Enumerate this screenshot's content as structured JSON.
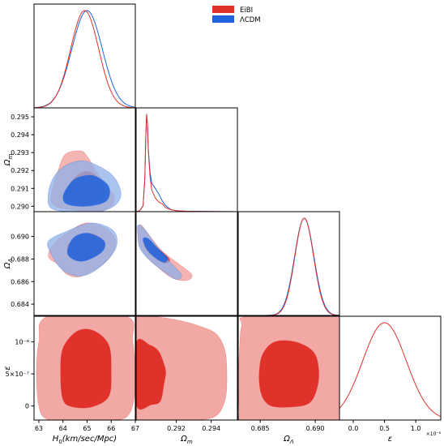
{
  "chart_data": {
    "type": "corner",
    "parameters": [
      {
        "key": "H0",
        "label_main": "H",
        "label_sub": "0",
        "label_rest": "(km/sec/Mpc)"
      },
      {
        "key": "Om",
        "label_main": "Ω",
        "label_sub": "m",
        "label_rest": ""
      },
      {
        "key": "OL",
        "label_main": "Ω",
        "label_sub": "Λ",
        "label_rest": ""
      },
      {
        "key": "eps",
        "label_main": "ε",
        "label_sub": "",
        "label_rest": ""
      }
    ],
    "ranges": {
      "H0": [
        62.8,
        67.0
      ],
      "Om": [
        0.2897,
        0.2955
      ],
      "OL": [
        0.683,
        0.6922
      ],
      "eps": [
        -2.2e-07,
        1.4e-06
      ]
    },
    "ticks": {
      "H0": {
        "values": [
          63,
          64,
          65,
          66,
          67
        ],
        "labels": [
          "63",
          "64",
          "65",
          "66",
          "67"
        ]
      },
      "Om_x": {
        "values": [
          0.292,
          0.294
        ],
        "labels": [
          "0.292",
          "0.294"
        ]
      },
      "Om_y": {
        "values": [
          0.29,
          0.291,
          0.292,
          0.293,
          0.294,
          0.295
        ],
        "labels": [
          "0.290",
          "0.291",
          "0.292",
          "0.293",
          "0.294",
          "0.295"
        ]
      },
      "OL_x": {
        "values": [
          0.685,
          0.69
        ],
        "labels": [
          "0.685",
          "0.690"
        ]
      },
      "OL_y": {
        "values": [
          0.684,
          0.686,
          0.688,
          0.69
        ],
        "labels": [
          "0.684",
          "0.686",
          "0.688",
          "0.690"
        ]
      },
      "eps_x": {
        "values": [
          0,
          5e-07,
          1e-06
        ],
        "labels": [
          "0.0",
          "0.5",
          "1.0"
        ]
      },
      "eps_y": {
        "values": [
          0,
          5e-07,
          1e-06
        ],
        "labels": [
          "0",
          "5×10⁻⁷",
          "10⁻⁶"
        ]
      }
    },
    "eps_x_multiplier": "×10⁻⁶",
    "series": [
      {
        "name": "EiBI",
        "color": "#e0322a",
        "light_color": "#f2a8a4"
      },
      {
        "name": "ΛCDM",
        "color": "#1f63dc",
        "light_color": "#8fb0ea"
      }
    ],
    "marginals": {
      "H0": {
        "EiBI": {
          "mean": 64.9,
          "sigma": 0.58
        },
        "ΛCDM": {
          "mean": 65.0,
          "sigma": 0.63
        }
      },
      "Om": {
        "EiBI": [
          [
            0.2897,
            0
          ],
          [
            0.2899,
            0.01
          ],
          [
            0.2901,
            0.06
          ],
          [
            0.2902,
            0.35
          ],
          [
            0.29025,
            0.75
          ],
          [
            0.2903,
            1.0
          ],
          [
            0.29035,
            0.9
          ],
          [
            0.2904,
            0.62
          ],
          [
            0.2905,
            0.35
          ],
          [
            0.2906,
            0.22
          ],
          [
            0.2908,
            0.14
          ],
          [
            0.291,
            0.1
          ],
          [
            0.2912,
            0.08
          ],
          [
            0.2914,
            0.04
          ],
          [
            0.2917,
            0.02
          ],
          [
            0.292,
            0.01
          ],
          [
            0.2925,
            0.005
          ],
          [
            0.2935,
            0.002
          ],
          [
            0.2955,
            0
          ]
        ],
        "ΛCDM": [
          [
            0.2897,
            0
          ],
          [
            0.2899,
            0.01
          ],
          [
            0.2901,
            0.06
          ],
          [
            0.2902,
            0.35
          ],
          [
            0.29025,
            0.75
          ],
          [
            0.2903,
            1.0
          ],
          [
            0.29035,
            0.9
          ],
          [
            0.2904,
            0.64
          ],
          [
            0.2905,
            0.4
          ],
          [
            0.2906,
            0.29
          ],
          [
            0.2908,
            0.24
          ],
          [
            0.291,
            0.18
          ],
          [
            0.2912,
            0.11
          ],
          [
            0.2914,
            0.06
          ],
          [
            0.2917,
            0.02
          ],
          [
            0.292,
            0.01
          ],
          [
            0.2925,
            0.005
          ],
          [
            0.2935,
            0.002
          ],
          [
            0.2955,
            0
          ]
        ]
      },
      "OL": {
        "EiBI": {
          "mean": 0.689,
          "sigma": 0.00085
        },
        "ΛCDM": {
          "mean": 0.689,
          "sigma": 0.00088
        }
      },
      "eps": {
        "EiBI": {
          "mean": 5e-07,
          "sigma": 3.5e-07
        }
      }
    },
    "contours": {
      "Om_H0": {
        "EiBI": {
          "outer": [
            [
              63.7,
              0.29
            ],
            [
              64.4,
              0.2898
            ],
            [
              65.4,
              0.2897
            ],
            [
              66.0,
              0.29
            ],
            [
              66.1,
              0.2906
            ],
            [
              65.6,
              0.2915
            ],
            [
              65.0,
              0.2928
            ],
            [
              64.7,
              0.2931
            ],
            [
              64.1,
              0.2929
            ],
            [
              63.8,
              0.292
            ],
            [
              63.5,
              0.2905
            ]
          ],
          "inner": [
            [
              64.3,
              0.2902
            ],
            [
              65.0,
              0.2901
            ],
            [
              65.6,
              0.2904
            ],
            [
              65.7,
              0.291
            ],
            [
              65.3,
              0.2918
            ],
            [
              64.8,
              0.2919
            ],
            [
              64.3,
              0.2913
            ],
            [
              64.1,
              0.2906
            ]
          ]
        },
        "ΛCDM": {
          "outer": [
            [
              63.5,
              0.2899
            ],
            [
              64.4,
              0.2897
            ],
            [
              65.5,
              0.2897
            ],
            [
              66.2,
              0.2901
            ],
            [
              66.4,
              0.2908
            ],
            [
              66.0,
              0.2918
            ],
            [
              65.0,
              0.2925
            ],
            [
              64.3,
              0.2924
            ],
            [
              63.7,
              0.2918
            ],
            [
              63.4,
              0.2908
            ]
          ],
          "inner": [
            [
              64.2,
              0.2901
            ],
            [
              65.0,
              0.29
            ],
            [
              65.8,
              0.2903
            ],
            [
              65.9,
              0.2911
            ],
            [
              65.3,
              0.2917
            ],
            [
              64.6,
              0.2916
            ],
            [
              64.2,
              0.2911
            ],
            [
              64.0,
              0.2905
            ]
          ]
        }
      },
      "OL_H0": {
        "EiBI": {
          "outer": [
            [
              63.8,
              0.6875
            ],
            [
              64.2,
              0.6866
            ],
            [
              64.8,
              0.6865
            ],
            [
              65.8,
              0.6878
            ],
            [
              66.2,
              0.6895
            ],
            [
              65.8,
              0.6907
            ],
            [
              65.0,
              0.6912
            ],
            [
              64.3,
              0.6905
            ],
            [
              63.6,
              0.6893
            ],
            [
              63.4,
              0.6882
            ]
          ],
          "inner": [
            [
              64.3,
              0.6882
            ],
            [
              64.8,
              0.6878
            ],
            [
              65.5,
              0.6885
            ],
            [
              65.7,
              0.6896
            ],
            [
              65.1,
              0.6903
            ],
            [
              64.6,
              0.6899
            ],
            [
              64.2,
              0.6892
            ]
          ]
        },
        "ΛCDM": {
          "outer": [
            [
              63.5,
              0.6885
            ],
            [
              64.0,
              0.687
            ],
            [
              64.8,
              0.6865
            ],
            [
              65.6,
              0.6874
            ],
            [
              66.2,
              0.689
            ],
            [
              66.1,
              0.6905
            ],
            [
              65.2,
              0.6912
            ],
            [
              64.2,
              0.6905
            ],
            [
              63.4,
              0.6896
            ]
          ],
          "inner": [
            [
              64.2,
              0.6884
            ],
            [
              64.8,
              0.6878
            ],
            [
              65.6,
              0.6886
            ],
            [
              65.7,
              0.6896
            ],
            [
              65.0,
              0.6903
            ],
            [
              64.4,
              0.6898
            ]
          ]
        }
      },
      "OL_Om": {
        "EiBI": {
          "outer": [
            [
              0.2898,
              0.69
            ],
            [
              0.2899,
              0.6892
            ],
            [
              0.2903,
              0.6882
            ],
            [
              0.291,
              0.6872
            ],
            [
              0.2918,
              0.6863
            ],
            [
              0.2926,
              0.6861
            ],
            [
              0.2929,
              0.6866
            ],
            [
              0.2922,
              0.6875
            ],
            [
              0.2912,
              0.6887
            ],
            [
              0.2905,
              0.69
            ],
            [
              0.29,
              0.691
            ],
            [
              0.2898,
              0.6908
            ]
          ],
          "inner": [
            [
              0.2901,
              0.6897
            ],
            [
              0.2903,
              0.6888
            ],
            [
              0.2908,
              0.6881
            ],
            [
              0.2914,
              0.6876
            ],
            [
              0.2916,
              0.688
            ],
            [
              0.291,
              0.6889
            ],
            [
              0.2904,
              0.6898
            ]
          ]
        },
        "ΛCDM": {
          "outer": [
            [
              0.2898,
              0.6902
            ],
            [
              0.2899,
              0.689
            ],
            [
              0.2904,
              0.688
            ],
            [
              0.2912,
              0.687
            ],
            [
              0.292,
              0.6862
            ],
            [
              0.2923,
              0.6866
            ],
            [
              0.2916,
              0.6878
            ],
            [
              0.2908,
              0.6893
            ],
            [
              0.2902,
              0.6906
            ],
            [
              0.2898,
              0.691
            ]
          ],
          "inner": [
            [
              0.2901,
              0.6898
            ],
            [
              0.2903,
              0.6889
            ],
            [
              0.2908,
              0.6881
            ],
            [
              0.2913,
              0.6877
            ],
            [
              0.2915,
              0.6881
            ],
            [
              0.2909,
              0.689
            ],
            [
              0.2904,
              0.6898
            ]
          ]
        }
      },
      "eps_H0": {
        "EiBI": {
          "outer": [
            [
              63.0,
              0.0
            ],
            [
              63.3,
              -2e-07
            ],
            [
              64.2,
              -2.2e-07
            ],
            [
              65.8,
              -2.2e-07
            ],
            [
              66.7,
              -1.5e-07
            ],
            [
              67.0,
              3e-07
            ],
            [
              66.9,
              1e-06
            ],
            [
              66.6,
              1.4e-06
            ],
            [
              63.4,
              1.4e-06
            ],
            [
              63.0,
              1e-06
            ],
            [
              62.9,
              5e-07
            ]
          ],
          "inner": [
            [
              64.0,
              1e-07
            ],
            [
              64.4,
              -1.5e-08
            ],
            [
              65.2,
              -1.5e-08
            ],
            [
              65.9,
              1.5e-07
            ],
            [
              66.0,
              5.5e-07
            ],
            [
              65.9,
              9.5e-07
            ],
            [
              65.3,
              1.17e-06
            ],
            [
              64.6,
              1.17e-06
            ],
            [
              64.0,
              9e-07
            ],
            [
              63.9,
              5e-07
            ]
          ]
        }
      },
      "eps_Om": {
        "EiBI": {
          "outer": [
            [
              0.2897,
              -2.2e-07
            ],
            [
              0.2918,
              -2.2e-07
            ],
            [
              0.2932,
              -2.2e-07
            ],
            [
              0.2943,
              -1.5e-07
            ],
            [
              0.2948,
              1e-07
            ],
            [
              0.2949,
              4.5e-07
            ],
            [
              0.2948,
              8.5e-07
            ],
            [
              0.2943,
              1.12e-06
            ],
            [
              0.2933,
              1.25e-06
            ],
            [
              0.2919,
              1.35e-06
            ],
            [
              0.2905,
              1.4e-06
            ],
            [
              0.2897,
              1.4e-06
            ]
          ],
          "inner": [
            [
              0.2897,
              2e-08
            ],
            [
              0.2906,
              2e-08
            ],
            [
              0.2911,
              8e-08
            ],
            [
              0.2913,
              3.5e-07
            ],
            [
              0.2914,
              5.2e-07
            ],
            [
              0.2913,
              6.5e-07
            ],
            [
              0.291,
              8.5e-07
            ],
            [
              0.2905,
              9.5e-07
            ],
            [
              0.2897,
              9.8e-07
            ]
          ]
        }
      },
      "eps_OL": {
        "EiBI": {
          "outer": [
            [
              0.6831,
              -1e-07
            ],
            [
              0.6832,
              -2.2e-07
            ],
            [
              0.6922,
              -2.2e-07
            ],
            [
              0.6922,
              1.4e-06
            ],
            [
              0.684,
              1.4e-06
            ],
            [
              0.6833,
              1.25e-06
            ],
            [
              0.6831,
              8e-07
            ],
            [
              0.683,
              4e-07
            ]
          ],
          "inner": [
            [
              0.6854,
              8e-08
            ],
            [
              0.6862,
              -1e-08
            ],
            [
              0.688,
              -1.5e-08
            ],
            [
              0.6895,
              5e-08
            ],
            [
              0.6902,
              3e-07
            ],
            [
              0.6903,
              6e-07
            ],
            [
              0.6898,
              8.5e-07
            ],
            [
              0.6882,
              1e-06
            ],
            [
              0.6863,
              1e-06
            ],
            [
              0.6852,
              8e-07
            ],
            [
              0.6849,
              5e-07
            ],
            [
              0.685,
              2.5e-07
            ]
          ]
        }
      }
    }
  }
}
